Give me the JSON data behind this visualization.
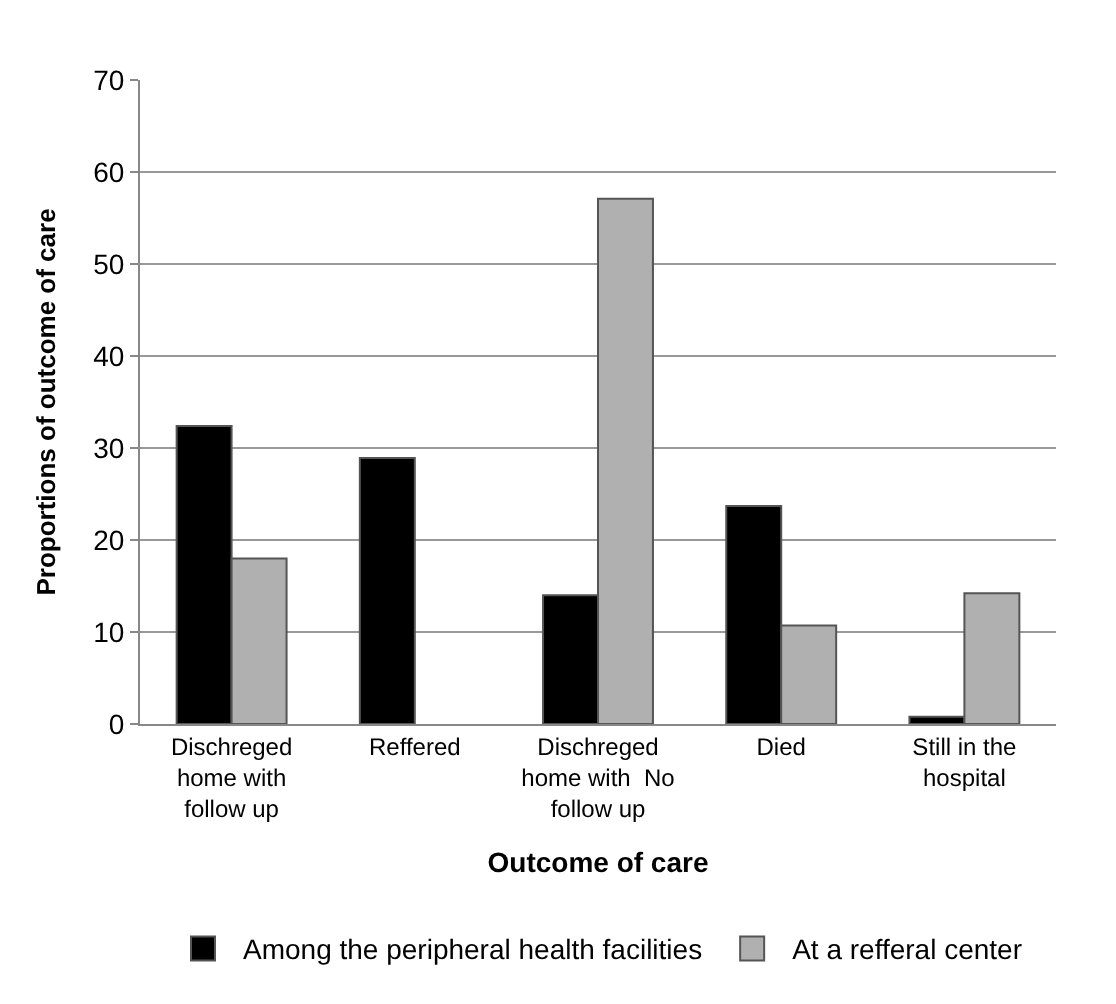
{
  "chart_data": {
    "type": "bar",
    "xlabel": "Outcome of care",
    "ylabel": "Proportions of outcome of care",
    "categories": [
      "Dischreged home with follow up",
      "Reffered",
      "Dischreged home with  No follow up",
      "Died",
      "Still in the hospital"
    ],
    "series": [
      {
        "name": "Among the peripheral health facilities",
        "color": "#000000",
        "values": [
          32.4,
          28.9,
          14.0,
          23.7,
          0.8
        ]
      },
      {
        "name": "At a refferal center",
        "color": "#b0b0b0",
        "values": [
          18.0,
          null,
          57.1,
          10.7,
          14.2
        ]
      }
    ],
    "ylim": [
      0,
      70
    ],
    "yticks": [
      0,
      10,
      20,
      30,
      40,
      50,
      60,
      70
    ],
    "grid": "y",
    "legend": "bottom"
  }
}
